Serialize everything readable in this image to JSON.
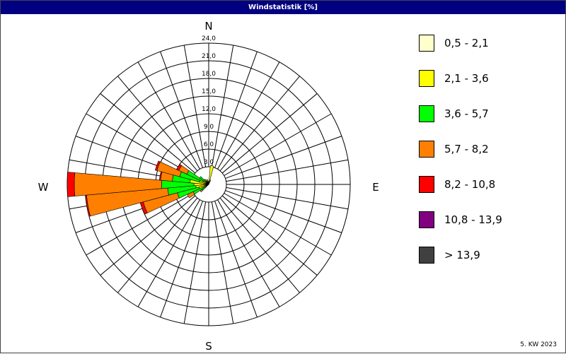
{
  "window": {
    "title": "Windstatistik [%]",
    "footer": "5. KW 2023"
  },
  "chart_data": {
    "type": "windrose",
    "title": "Windstatistik [%]",
    "compass": {
      "n": "N",
      "e": "E",
      "s": "S",
      "w": "W"
    },
    "radial_ticks": [
      "3,0",
      "6,0",
      "9,0",
      "12,0",
      "15,0",
      "18,0",
      "21,0",
      "24,0"
    ],
    "radial_max": 24,
    "sector_width_deg": 10,
    "classes": [
      {
        "name": "0,5 - 2,1",
        "color": "#ffffcc"
      },
      {
        "name": "2,1 - 3,6",
        "color": "#ffff00"
      },
      {
        "name": "3,6 - 5,7",
        "color": "#00ff00"
      },
      {
        "name": "5,7 - 8,2",
        "color": "#ff8000"
      },
      {
        "name": "8,2 - 10,8",
        "color": "#ff0000"
      },
      {
        "name": "10,8 - 13,9",
        "color": "#800080"
      },
      {
        "name": "> 13,9",
        "color": "#404040"
      }
    ],
    "directions": [
      {
        "deg": 10,
        "values": [
          0.3,
          2.9,
          0,
          0,
          0,
          0,
          0
        ]
      },
      {
        "deg": 20,
        "values": [
          0.2,
          0.6,
          0,
          0,
          0,
          0,
          0
        ]
      },
      {
        "deg": 230,
        "values": [
          0.1,
          0.5,
          0.8,
          0.4,
          0,
          0,
          0
        ]
      },
      {
        "deg": 240,
        "values": [
          0.1,
          0.8,
          2.0,
          1.1,
          0,
          0,
          0
        ]
      },
      {
        "deg": 250,
        "values": [
          0.2,
          1.5,
          3.8,
          6.0,
          0.5,
          0,
          0
        ]
      },
      {
        "deg": 260,
        "values": [
          0.2,
          2.0,
          4.8,
          13.8,
          0.2,
          0,
          0
        ]
      },
      {
        "deg": 270,
        "values": [
          0.2,
          2.3,
          5.5,
          14.8,
          1.2,
          0,
          0
        ]
      },
      {
        "deg": 280,
        "values": [
          0.2,
          3.0,
          3.0,
          2.0,
          0.2,
          0,
          0
        ]
      },
      {
        "deg": 290,
        "values": [
          0.1,
          1.5,
          3.5,
          4.0,
          0.3,
          0,
          0
        ]
      },
      {
        "deg": 300,
        "values": [
          0.1,
          1.0,
          3.0,
          1.5,
          0.4,
          0,
          0
        ]
      },
      {
        "deg": 310,
        "values": [
          0.1,
          0.8,
          1.0,
          0,
          0,
          0,
          0
        ]
      },
      {
        "deg": 320,
        "values": [
          0.1,
          0.5,
          0.5,
          0,
          0,
          0,
          0
        ]
      },
      {
        "deg": 330,
        "values": [
          0.1,
          0.6,
          0,
          0,
          0,
          0,
          0
        ]
      },
      {
        "deg": 340,
        "values": [
          0.1,
          0.8,
          0,
          0,
          0,
          0,
          0
        ]
      },
      {
        "deg": 350,
        "values": [
          0.1,
          0.5,
          0,
          0,
          0,
          0,
          0
        ]
      }
    ]
  }
}
